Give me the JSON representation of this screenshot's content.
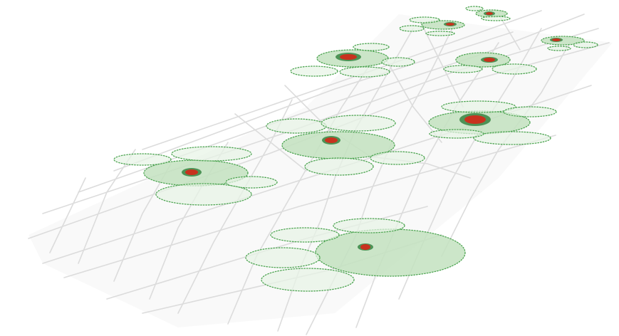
{
  "colors": {
    "background": "#ffffff",
    "street": "#dcdcdc",
    "ground_shadow": "#f4f4f4",
    "buffer_fill": "#c3e2c0",
    "buffer_fill_light": "#e7f4e5",
    "buffer_stroke": "#4ea552",
    "core_fill": "#3f8a49",
    "hotspot": "#c8321e"
  },
  "layers": [
    {
      "name": "street-grid"
    },
    {
      "name": "coverage-buffers"
    },
    {
      "name": "incident-hotspots"
    }
  ]
}
